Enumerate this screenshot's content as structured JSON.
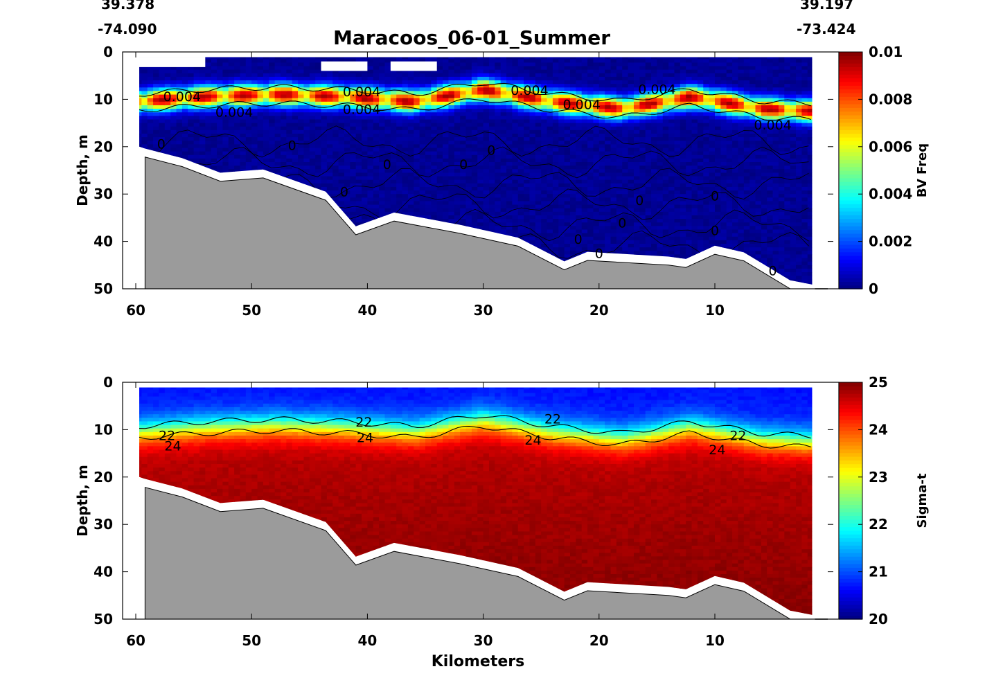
{
  "header": {
    "title": "Maracoos_06-01_Summer",
    "left_lat": "39.378",
    "left_lon": "-74.090",
    "right_lat": "39.197",
    "right_lon": "-73.424"
  },
  "chart_data": [
    {
      "type": "heatmap",
      "variable": "BV Freq",
      "xlabel": "",
      "ylabel": "Depth, m",
      "xlim": [
        61,
        0
      ],
      "ylim": [
        0,
        50
      ],
      "x_ticks": [
        60,
        50,
        40,
        30,
        20,
        10
      ],
      "y_ticks": [
        0,
        10,
        20,
        30,
        40,
        50
      ],
      "colorbar": {
        "label": "BV Freq",
        "range": [
          0,
          0.01
        ],
        "ticks": [
          "0",
          "0.002",
          "0.004",
          "0.006",
          "0.008",
          "0.01"
        ],
        "colormap": "jet"
      },
      "bathymetry_km_depth": [
        [
          59.2,
          22.2
        ],
        [
          56,
          24.2
        ],
        [
          52.7,
          27.3
        ],
        [
          49,
          26.6
        ],
        [
          43.6,
          31.3
        ],
        [
          41,
          38.6
        ],
        [
          37.7,
          35.7
        ],
        [
          32,
          38.3
        ],
        [
          27,
          41
        ],
        [
          23,
          46
        ],
        [
          21,
          44
        ],
        [
          14,
          45
        ],
        [
          12.5,
          45.5
        ],
        [
          10,
          42.7
        ],
        [
          7.5,
          44.1
        ],
        [
          3.5,
          50
        ]
      ],
      "data_coverage_km": [
        59.7,
        1.6
      ],
      "features": [
        {
          "type": "band_center_depth",
          "km": [
            60,
            54,
            48,
            42,
            36,
            30,
            24,
            18,
            12,
            6,
            2
          ],
          "depth_m": [
            10.5,
            9.5,
            9,
            9.5,
            10.5,
            8,
            10.5,
            12,
            9.5,
            12,
            12.5
          ]
        },
        {
          "type": "band_peak_value",
          "value": 0.0095
        }
      ],
      "contour_levels": [
        0,
        0.004
      ],
      "contour_labels": [
        {
          "text": "0.004",
          "km": 56,
          "depth_m": 9.5
        },
        {
          "text": "0.004",
          "km": 51.5,
          "depth_m": 12.8
        },
        {
          "text": "0.004",
          "km": 40.5,
          "depth_m": 8.5
        },
        {
          "text": "0.004",
          "km": 40.5,
          "depth_m": 12.2
        },
        {
          "text": "0.004",
          "km": 26,
          "depth_m": 8.2
        },
        {
          "text": "0.004",
          "km": 21.5,
          "depth_m": 11.2
        },
        {
          "text": "0.004",
          "km": 15,
          "depth_m": 8
        },
        {
          "text": "0.004",
          "km": 5,
          "depth_m": 15.5
        },
        {
          "text": "0",
          "km": 57.8,
          "depth_m": 19.5
        },
        {
          "text": "0",
          "km": 46.5,
          "depth_m": 19.8
        },
        {
          "text": "0",
          "km": 38.3,
          "depth_m": 23.8
        },
        {
          "text": "0",
          "km": 31.7,
          "depth_m": 23.8
        },
        {
          "text": "0",
          "km": 29.3,
          "depth_m": 20.8
        },
        {
          "text": "0",
          "km": 42,
          "depth_m": 29.6
        },
        {
          "text": "0",
          "km": 16.5,
          "depth_m": 31.4
        },
        {
          "text": "0",
          "km": 10,
          "depth_m": 30.5
        },
        {
          "text": "0",
          "km": 18,
          "depth_m": 36.2
        },
        {
          "text": "0",
          "km": 10,
          "depth_m": 37.8
        },
        {
          "text": "0",
          "km": 21.8,
          "depth_m": 39.6
        },
        {
          "text": "0",
          "km": 20,
          "depth_m": 42.6
        },
        {
          "text": "0",
          "km": 5,
          "depth_m": 46.3
        }
      ]
    },
    {
      "type": "heatmap",
      "variable": "Sigma-t",
      "xlabel": "Kilometers",
      "ylabel": "Depth, m",
      "xlim": [
        61,
        0
      ],
      "ylim": [
        0,
        50
      ],
      "x_ticks": [
        60,
        50,
        40,
        30,
        20,
        10
      ],
      "y_ticks": [
        0,
        10,
        20,
        30,
        40,
        50
      ],
      "colorbar": {
        "label": "Sigma-t",
        "range": [
          20,
          25
        ],
        "ticks": [
          "20",
          "21",
          "22",
          "23",
          "24",
          "25"
        ],
        "colormap": "jet"
      },
      "bathymetry_km_depth": [
        [
          59.2,
          22.2
        ],
        [
          56,
          24.2
        ],
        [
          52.7,
          27.3
        ],
        [
          49,
          26.6
        ],
        [
          43.6,
          31.3
        ],
        [
          41,
          38.6
        ],
        [
          37.7,
          35.7
        ],
        [
          32,
          38.3
        ],
        [
          27,
          41
        ],
        [
          23,
          46
        ],
        [
          21,
          44
        ],
        [
          14,
          45
        ],
        [
          12.5,
          45.5
        ],
        [
          10,
          42.7
        ],
        [
          7.5,
          44.1
        ],
        [
          3.5,
          50
        ]
      ],
      "data_coverage_km": [
        59.7,
        1.6
      ],
      "features": [
        {
          "type": "surface_value",
          "value": 20.7
        },
        {
          "type": "deep_value",
          "value": 24.7
        },
        {
          "type": "pycnocline_depth",
          "km": [
            60,
            54,
            48,
            42,
            36,
            30,
            24,
            18,
            12,
            6,
            2
          ],
          "depth_m": [
            10.5,
            9.5,
            9,
            9.5,
            10.5,
            8,
            10.5,
            12,
            9.5,
            12,
            12.5
          ]
        }
      ],
      "contour_levels": [
        22,
        24
      ],
      "contour_labels": [
        {
          "text": "22",
          "km": 57.3,
          "depth_m": 11.3
        },
        {
          "text": "24",
          "km": 56.8,
          "depth_m": 13.5
        },
        {
          "text": "22",
          "km": 40.3,
          "depth_m": 8.5
        },
        {
          "text": "24",
          "km": 40.2,
          "depth_m": 11.8
        },
        {
          "text": "22",
          "km": 24,
          "depth_m": 7.8
        },
        {
          "text": "24",
          "km": 25.7,
          "depth_m": 12.3
        },
        {
          "text": "22",
          "km": 8,
          "depth_m": 11.3
        },
        {
          "text": "24",
          "km": 9.8,
          "depth_m": 14.3
        }
      ]
    }
  ],
  "colors": {
    "land": "#9b9b9b",
    "contour": "#000000",
    "colormap": "jet"
  }
}
